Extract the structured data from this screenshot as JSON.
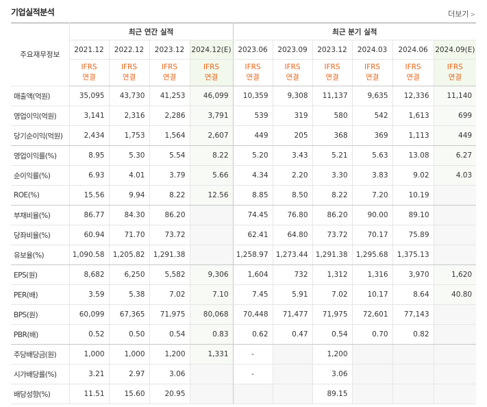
{
  "header": {
    "title": "기업실적분석",
    "more": "더보기"
  },
  "table": {
    "corner": "주요재무정보",
    "groups": [
      "최근 연간 실적",
      "최근 분기 실적"
    ],
    "periods": [
      "2021.12",
      "2022.12",
      "2023.12",
      "2024.12(E)",
      "2023.06",
      "2023.09",
      "2023.12",
      "2024.03",
      "2024.06",
      "2024.09(E)"
    ],
    "accounting": [
      {
        "standard": "IFRS",
        "scope": "연결"
      },
      {
        "standard": "IFRS",
        "scope": "연결"
      },
      {
        "standard": "IFRS",
        "scope": "연결"
      },
      {
        "standard": "IFRS",
        "scope": "연결"
      },
      {
        "standard": "IFRS",
        "scope": "연결"
      },
      {
        "standard": "IFRS",
        "scope": "연결"
      },
      {
        "standard": "IFRS",
        "scope": "연결"
      },
      {
        "standard": "IFRS",
        "scope": "연결"
      },
      {
        "standard": "IFRS",
        "scope": "연결"
      },
      {
        "standard": "IFRS",
        "scope": "연결"
      }
    ],
    "rows": [
      {
        "label": "매출액(억원)",
        "values": [
          "35,095",
          "43,730",
          "41,253",
          "46,099",
          "10,359",
          "9,308",
          "11,137",
          "9,635",
          "12,336",
          "11,140"
        ]
      },
      {
        "label": "영업이익(억원)",
        "values": [
          "3,141",
          "2,316",
          "2,286",
          "3,791",
          "539",
          "319",
          "580",
          "542",
          "1,613",
          "699"
        ]
      },
      {
        "label": "당기순이익(억원)",
        "values": [
          "2,434",
          "1,753",
          "1,564",
          "2,607",
          "449",
          "205",
          "368",
          "369",
          "1,113",
          "449"
        ]
      },
      {
        "label": "영업이익률(%)",
        "values": [
          "8.95",
          "5.30",
          "5.54",
          "8.22",
          "5.20",
          "3.43",
          "5.21",
          "5.63",
          "13.08",
          "6.27"
        ]
      },
      {
        "label": "순이익률(%)",
        "values": [
          "6.93",
          "4.01",
          "3.79",
          "5.66",
          "4.34",
          "2.20",
          "3.30",
          "3.83",
          "9.02",
          "4.03"
        ]
      },
      {
        "label": "ROE(%)",
        "values": [
          "15.56",
          "9.94",
          "8.22",
          "12.56",
          "8.85",
          "8.50",
          "8.22",
          "7.20",
          "10.19",
          null
        ]
      },
      {
        "label": "부채비율(%)",
        "values": [
          "86.77",
          "84.30",
          "86.20",
          null,
          "74.45",
          "76.80",
          "86.20",
          "90.00",
          "89.10",
          null
        ]
      },
      {
        "label": "당좌비율(%)",
        "values": [
          "60.94",
          "71.70",
          "73.72",
          null,
          "62.41",
          "64.80",
          "73.72",
          "70.17",
          "75.89",
          null
        ]
      },
      {
        "label": "유보율(%)",
        "values": [
          "1,090.58",
          "1,205.82",
          "1,291.38",
          null,
          "1,258.97",
          "1,273.44",
          "1,291.38",
          "1,295.68",
          "1,375.13",
          null
        ]
      },
      {
        "label": "EPS(원)",
        "values": [
          "8,682",
          "6,250",
          "5,582",
          "9,306",
          "1,604",
          "732",
          "1,312",
          "1,316",
          "3,970",
          "1,620"
        ]
      },
      {
        "label": "PER(배)",
        "values": [
          "3.59",
          "5.38",
          "7.02",
          "7.10",
          "7.45",
          "5.91",
          "7.02",
          "10.17",
          "8.64",
          "40.80"
        ]
      },
      {
        "label": "BPS(원)",
        "values": [
          "60,099",
          "67,365",
          "71,975",
          "80,068",
          "70,448",
          "71,477",
          "71,975",
          "72,601",
          "77,143",
          null
        ]
      },
      {
        "label": "PBR(배)",
        "values": [
          "0.52",
          "0.50",
          "0.54",
          "0.83",
          "0.62",
          "0.47",
          "0.54",
          "0.70",
          "0.82",
          null
        ]
      },
      {
        "label": "주당배당금(원)",
        "values": [
          "1,000",
          "1,000",
          "1,200",
          "1,331",
          "-",
          null,
          "1,200",
          null,
          null,
          null
        ]
      },
      {
        "label": "시가배당률(%)",
        "values": [
          "3.21",
          "2.97",
          "3.06",
          null,
          "-",
          null,
          "3.06",
          null,
          null,
          null
        ]
      },
      {
        "label": "배당성향(%)",
        "values": [
          "11.51",
          "15.60",
          "20.95",
          null,
          null,
          null,
          "89.15",
          null,
          null,
          null
        ]
      }
    ]
  }
}
